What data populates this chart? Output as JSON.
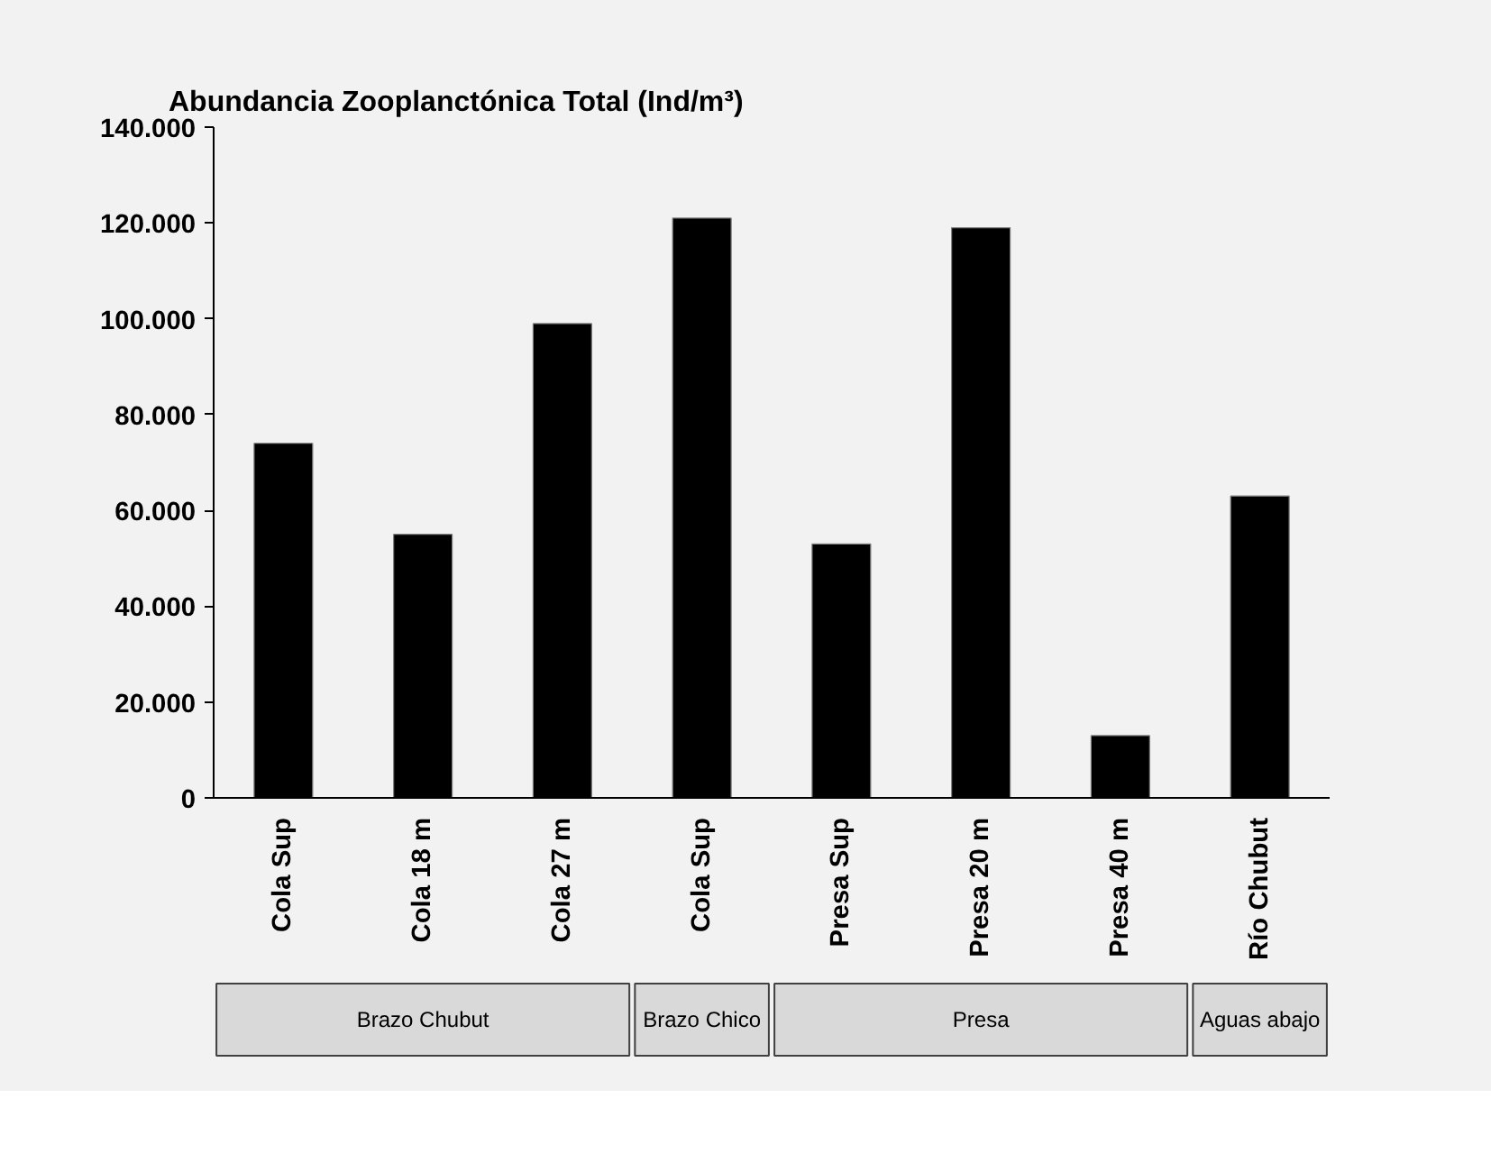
{
  "chart_data": {
    "type": "bar",
    "title": "Abundancia Zooplanctónica Total (Ind/m³)",
    "categories": [
      "Cola Sup",
      "Cola 18 m",
      "Cola 27 m",
      "Cola Sup",
      "Presa Sup",
      "Presa 20 m",
      "Presa 40 m",
      "Río Chubut"
    ],
    "values": [
      74000,
      55000,
      99000,
      121000,
      53000,
      119000,
      13000,
      63000
    ],
    "color": "#000000",
    "ylim": [
      0,
      140000
    ],
    "yticks": [
      {
        "value": 0,
        "label": "0"
      },
      {
        "value": 20000,
        "label": "20.000"
      },
      {
        "value": 40000,
        "label": "40.000"
      },
      {
        "value": 60000,
        "label": "60.000"
      },
      {
        "value": 80000,
        "label": "80.000"
      },
      {
        "value": 100000,
        "label": "100.000"
      },
      {
        "value": 120000,
        "label": "120.000"
      },
      {
        "value": 140000,
        "label": "140.000"
      }
    ],
    "annotations": [
      "Brazo Chubut",
      "Brazo Chico",
      "Presa",
      "Aguas abajo"
    ],
    "grid": false
  }
}
